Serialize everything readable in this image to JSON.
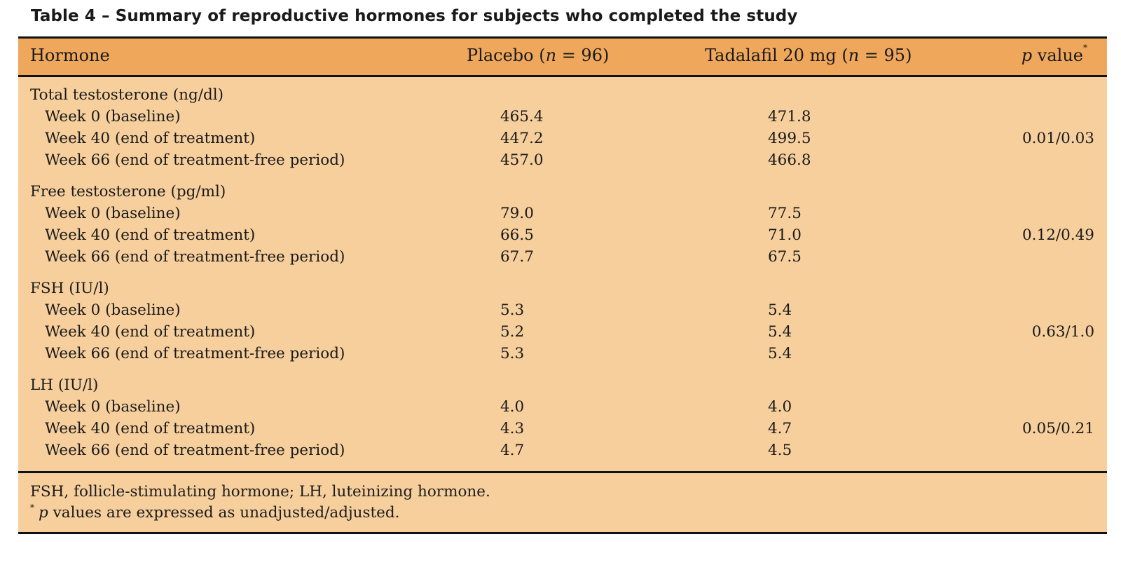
{
  "caption": "Table 4 – Summary of reproductive hormones for subjects who completed the study",
  "header": {
    "hormone": "Hormone",
    "placebo_pre": "Placebo (",
    "placebo_n": "n",
    "placebo_post": " = 96)",
    "tadalafil_pre": "Tadalafil 20 mg (",
    "tadalafil_n": "n",
    "tadalafil_post": " = 95)",
    "pvalue_p": "p",
    "pvalue_rest": " value",
    "pvalue_mark": "*"
  },
  "groups": [
    {
      "label": "Total testosterone (ng/dl)",
      "rows": [
        {
          "label": "Week 0 (baseline)",
          "placebo": "465.4",
          "tadalafil": "471.8",
          "p": ""
        },
        {
          "label": "Week 40 (end of treatment)",
          "placebo": "447.2",
          "tadalafil": "499.5",
          "p": "0.01/0.03"
        },
        {
          "label": "Week 66 (end of treatment-free period)",
          "placebo": "457.0",
          "tadalafil": "466.8",
          "p": ""
        }
      ]
    },
    {
      "label": "Free testosterone (pg/ml)",
      "rows": [
        {
          "label": "Week 0 (baseline)",
          "placebo": "79.0",
          "tadalafil": "77.5",
          "p": ""
        },
        {
          "label": "Week 40 (end of treatment)",
          "placebo": "66.5",
          "tadalafil": "71.0",
          "p": "0.12/0.49"
        },
        {
          "label": "Week 66 (end of treatment-free period)",
          "placebo": "67.7",
          "tadalafil": "67.5",
          "p": ""
        }
      ]
    },
    {
      "label": "FSH (IU/l)",
      "rows": [
        {
          "label": "Week 0 (baseline)",
          "placebo": "5.3",
          "tadalafil": "5.4",
          "p": ""
        },
        {
          "label": "Week 40 (end of treatment)",
          "placebo": "5.2",
          "tadalafil": "5.4",
          "p": "0.63/1.0"
        },
        {
          "label": "Week 66 (end of treatment-free period)",
          "placebo": "5.3",
          "tadalafil": "5.4",
          "p": ""
        }
      ]
    },
    {
      "label": "LH (IU/l)",
      "rows": [
        {
          "label": "Week 0 (baseline)",
          "placebo": "4.0",
          "tadalafil": "4.0",
          "p": ""
        },
        {
          "label": "Week 40 (end of treatment)",
          "placebo": "4.3",
          "tadalafil": "4.7",
          "p": "0.05/0.21"
        },
        {
          "label": "Week 66 (end of treatment-free period)",
          "placebo": "4.7",
          "tadalafil": "4.5",
          "p": ""
        }
      ]
    }
  ],
  "footnote": {
    "abbreviations": "FSH, follicle-stimulating hormone; LH, luteinizing hormone.",
    "mark": "*",
    "p_italic": "p",
    "p_note": " values are expressed as unadjusted/adjusted."
  },
  "colors": {
    "header_bg": "#efa75b",
    "body_bg": "#f6cf9d",
    "rule": "#111111"
  }
}
